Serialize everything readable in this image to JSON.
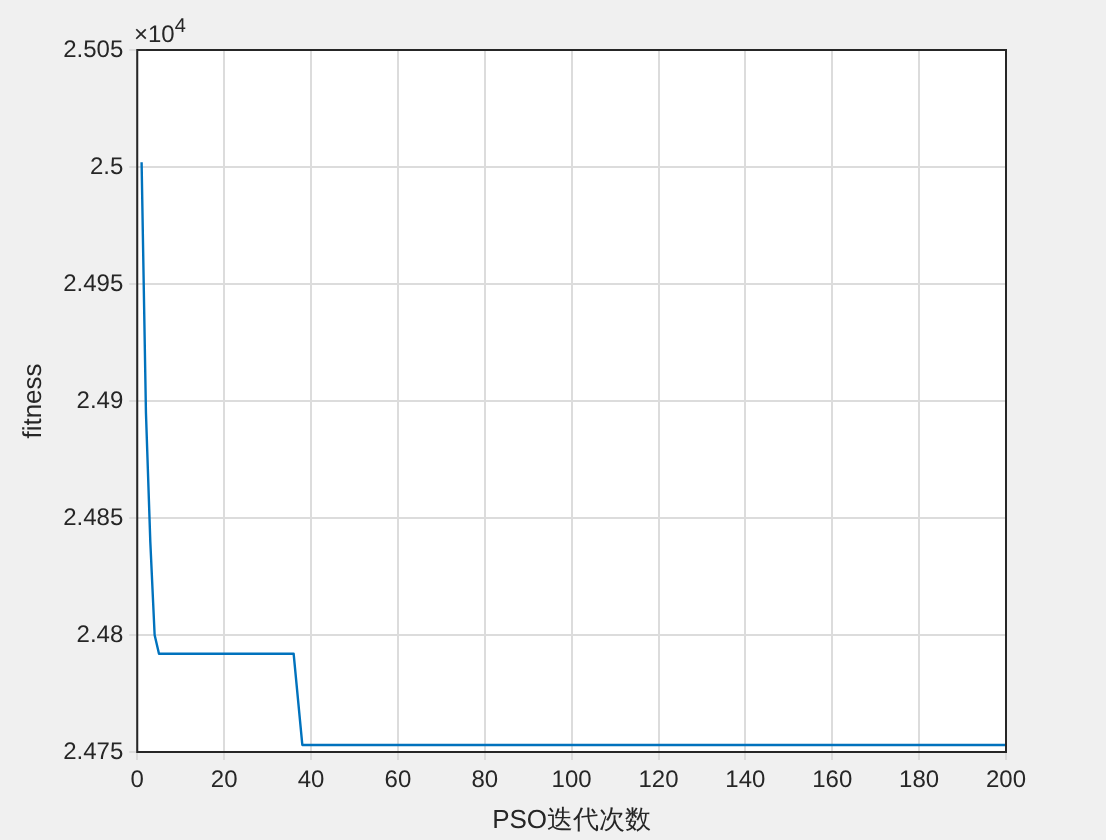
{
  "chart_data": {
    "type": "line",
    "xlabel": "PSO迭代次数",
    "ylabel": "fitness",
    "annotations": [
      "×10$^{4}$"
    ],
    "x": [
      1,
      2,
      3,
      4,
      5,
      36,
      38,
      200
    ],
    "series": [
      {
        "color": "#0072bd",
        "values": [
          2.5002,
          2.4895,
          2.484,
          2.48,
          2.4792,
          2.4792,
          2.4753,
          2.4753
        ]
      }
    ],
    "xlim": [
      0,
      200
    ],
    "xticks": [
      0,
      20,
      40,
      60,
      80,
      100,
      120,
      140,
      160,
      180,
      200
    ],
    "ylim": [
      2.475,
      2.505
    ],
    "yticks": [
      2.475,
      2.48,
      2.485,
      2.49,
      2.495,
      2.5,
      2.505
    ],
    "grid": true,
    "legend": false,
    "marker": "none",
    "line_style": "solid"
  }
}
